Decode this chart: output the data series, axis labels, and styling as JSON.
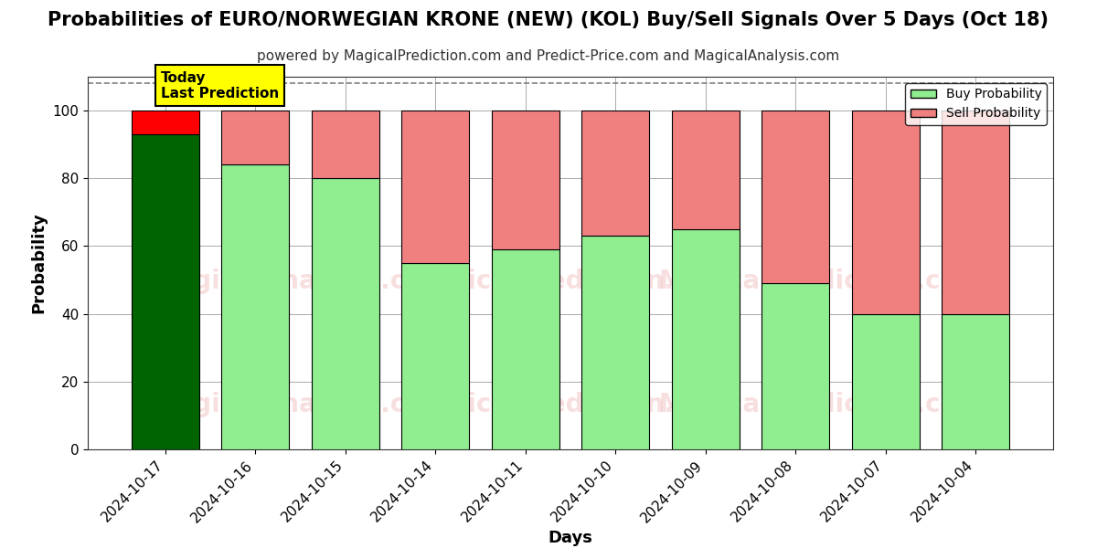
{
  "title": "Probabilities of EURO/NORWEGIAN KRONE (NEW) (KOL) Buy/Sell Signals Over 5 Days (Oct 18)",
  "subtitle": "powered by MagicalPrediction.com and Predict-Price.com and MagicalAnalysis.com",
  "xlabel": "Days",
  "ylabel": "Probability",
  "categories": [
    "2024-10-17",
    "2024-10-16",
    "2024-10-15",
    "2024-10-14",
    "2024-10-11",
    "2024-10-10",
    "2024-10-09",
    "2024-10-08",
    "2024-10-07",
    "2024-10-04"
  ],
  "buy_values": [
    93,
    84,
    80,
    55,
    59,
    63,
    65,
    49,
    40,
    40
  ],
  "sell_values": [
    7,
    16,
    20,
    45,
    41,
    37,
    35,
    51,
    60,
    60
  ],
  "today_bar_buy_color": "#006400",
  "today_bar_sell_color": "#FF0000",
  "buy_color": "#90EE90",
  "sell_color": "#F08080",
  "buy_edge_color": "#000000",
  "sell_edge_color": "#000000",
  "annotation_text": "Today\nLast Prediction",
  "annotation_bg_color": "#FFFF00",
  "annotation_border_color": "#000000",
  "ylim": [
    0,
    110
  ],
  "yticks": [
    0,
    20,
    40,
    60,
    80,
    100
  ],
  "dashed_line_y": 108,
  "watermark_color": "#d9534f",
  "watermark_alpha": 0.18,
  "background_color": "#ffffff",
  "grid_color": "#aaaaaa",
  "legend_buy_label": "Buy Probability",
  "legend_sell_label": "Sell Probability",
  "title_fontsize": 15,
  "subtitle_fontsize": 11,
  "axis_label_fontsize": 13,
  "tick_fontsize": 11
}
